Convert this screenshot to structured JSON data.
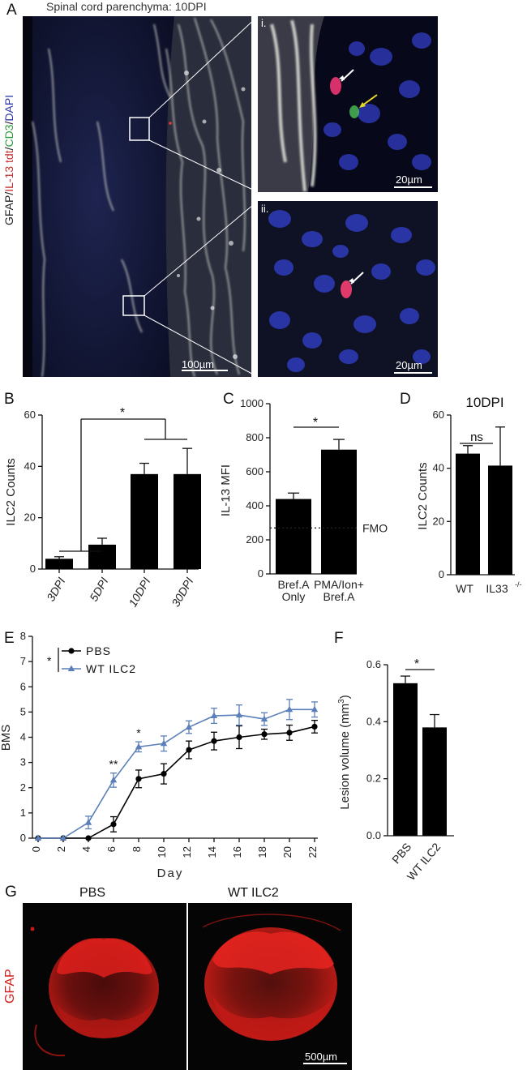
{
  "panels": {
    "A": {
      "label": "A",
      "title": "Spinal cord parenchyma: 10DPI",
      "stain": {
        "gfap": "GFAP/",
        "il13": "IL-13 tdt",
        "sep1": "/",
        "cd3": "CD3",
        "sep2": "/",
        "dapi": "DAPI"
      },
      "scalebar_main": "100µm",
      "inset_i": {
        "label": "i.",
        "scalebar": "20µm"
      },
      "inset_ii": {
        "label": "ii.",
        "scalebar": "20µm"
      }
    },
    "G": {
      "label": "G",
      "col_pbs": "PBS",
      "col_wt": "WT ILC2",
      "ylabel": "GFAP",
      "scalebar": "500µm"
    }
  },
  "colors": {
    "gfap": "#e8e8e8",
    "il13": "#e03a3a",
    "cd3": "#3cb44b",
    "dapi": "#2b3aa8",
    "bar": "#000000",
    "line_pbs": "#000000",
    "line_wt": "#5b7fb8",
    "gfap_red": "#e0201c"
  },
  "chart_data": [
    {
      "id": "B",
      "label": "B",
      "type": "bar",
      "categories": [
        "3DPI",
        "5DPI",
        "10DPI",
        "30DPI"
      ],
      "values": [
        4,
        9.5,
        37,
        37
      ],
      "errors": [
        0.8,
        2.5,
        4.2,
        10
      ],
      "ylabel": "ILC2 Counts",
      "ylim": [
        0,
        60
      ],
      "yticks": [
        "0",
        "20",
        "40",
        "60"
      ],
      "annotations": [
        "*"
      ]
    },
    {
      "id": "C",
      "label": "C",
      "type": "bar",
      "categories": [
        "Bref.A\nOnly",
        "PMA/Ion+\nBref.A"
      ],
      "category_lines": [
        [
          "Bref.A",
          "Only"
        ],
        [
          "PMA/Ion+",
          "Bref.A"
        ]
      ],
      "values": [
        440,
        730
      ],
      "errors": [
        35,
        60
      ],
      "ylabel": "IL-13 MFI",
      "ylim": [
        0,
        1000
      ],
      "yticks": [
        "0",
        "200",
        "400",
        "600",
        "800",
        "1000"
      ],
      "reference_line": {
        "value": 270,
        "label": "FMO"
      },
      "annotations": [
        "*"
      ]
    },
    {
      "id": "D",
      "label": "D",
      "type": "bar",
      "title": "10DPI",
      "categories": [
        "WT",
        "IL33"
      ],
      "category_sup": [
        "",
        "-/-"
      ],
      "values": [
        45.5,
        41
      ],
      "errors": [
        3,
        14.5
      ],
      "ylabel": "ILC2 Counts",
      "ylim": [
        0,
        60
      ],
      "yticks": [
        "0",
        "20",
        "40",
        "60"
      ],
      "annotations": [
        "ns"
      ]
    },
    {
      "id": "E",
      "label": "E",
      "type": "line",
      "x": [
        0,
        2,
        4,
        6,
        8,
        10,
        12,
        14,
        16,
        18,
        20,
        22
      ],
      "xticks": [
        "0",
        "2",
        "4",
        "6",
        "8",
        "10",
        "12",
        "14",
        "16",
        "18",
        "20",
        "22"
      ],
      "series": [
        {
          "name": "PBS",
          "values": [
            0,
            0,
            0,
            0.55,
            2.35,
            2.55,
            3.5,
            3.85,
            4.0,
            4.12,
            4.18,
            4.42
          ],
          "errors": [
            0,
            0,
            0,
            0.3,
            0.35,
            0.4,
            0.35,
            0.35,
            0.45,
            0.2,
            0.3,
            0.25
          ]
        },
        {
          "name": "WT ILC2",
          "values": [
            0,
            0,
            0.62,
            2.3,
            3.62,
            3.75,
            4.4,
            4.85,
            4.88,
            4.72,
            5.1,
            5.1
          ],
          "errors": [
            0,
            0,
            0.25,
            0.28,
            0.2,
            0.3,
            0.25,
            0.3,
            0.4,
            0.25,
            0.4,
            0.3
          ]
        }
      ],
      "xlabel": "Day",
      "ylabel": "BMS",
      "ylim": [
        0,
        8
      ],
      "yticks": [
        "0",
        "1",
        "2",
        "3",
        "4",
        "5",
        "6",
        "7",
        "8"
      ],
      "legend_star": "*",
      "annotations": [
        {
          "x": 6,
          "text": "**"
        },
        {
          "x": 8,
          "text": "*"
        }
      ]
    },
    {
      "id": "F",
      "label": "F",
      "type": "bar",
      "categories": [
        "PBS",
        "WT ILC2"
      ],
      "values": [
        0.535,
        0.38
      ],
      "errors": [
        0.025,
        0.045
      ],
      "ylabel_pre": "Lesion volume (mm",
      "ylabel_sup": "3",
      "ylabel_post": ")",
      "ylim": [
        0,
        0.6
      ],
      "yticks": [
        "0.0",
        "0.2",
        "0.4",
        "0.6"
      ],
      "annotations": [
        "*"
      ]
    }
  ]
}
